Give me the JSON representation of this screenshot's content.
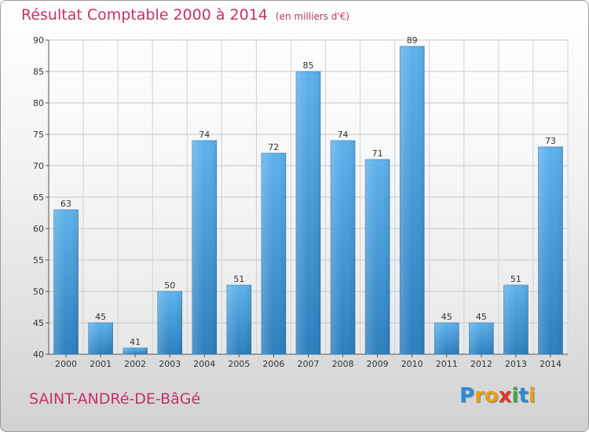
{
  "chart_data": {
    "type": "bar",
    "title": "Résultat Comptable 2000 à 2014",
    "subtitle": "(en milliers d'€)",
    "categories": [
      "2000",
      "2001",
      "2002",
      "2003",
      "2004",
      "2005",
      "2006",
      "2007",
      "2008",
      "2009",
      "2010",
      "2011",
      "2012",
      "2013",
      "2014"
    ],
    "values": [
      63,
      45,
      41,
      50,
      74,
      51,
      72,
      85,
      74,
      71,
      89,
      45,
      45,
      51,
      73
    ],
    "ylim": [
      40,
      90
    ],
    "yticks": [
      40,
      45,
      50,
      55,
      60,
      65,
      70,
      75,
      80,
      85,
      90
    ],
    "grid": true,
    "xlabel": "",
    "ylabel": "",
    "colors": {
      "bar_light": "#5eb2ec",
      "bar_dark": "#2c7fbe",
      "title": "#c6306a"
    }
  },
  "commune": "SAINT-ANDRé-DE-BâGé",
  "logo": {
    "letters": [
      {
        "char": "P",
        "color": "#2f8ad6"
      },
      {
        "char": "r",
        "color": "#e3a01b"
      },
      {
        "char": "o",
        "color": "#e3a01b"
      },
      {
        "char": "x",
        "color": "#d9352a"
      },
      {
        "char": "i",
        "color": "#4aa63a"
      },
      {
        "char": "t",
        "color": "#2f8ad6"
      },
      {
        "char": "i",
        "color": "#e3a01b"
      }
    ]
  }
}
